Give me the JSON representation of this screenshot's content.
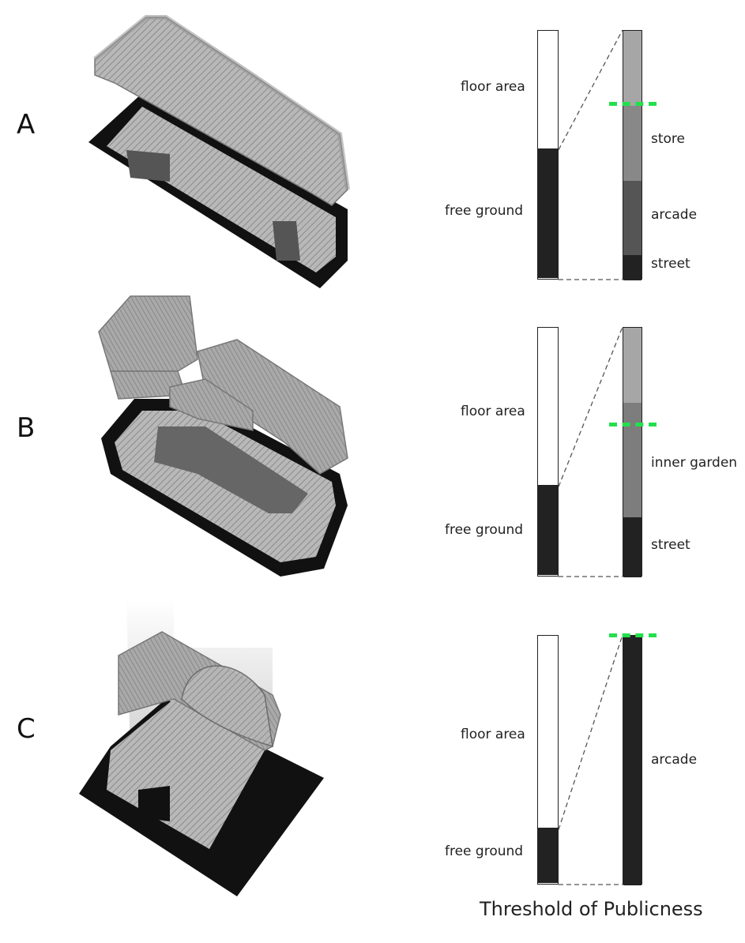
{
  "panels": [
    {
      "letter": "A",
      "left_labels": {
        "upper": "floor area",
        "lower": "free ground"
      },
      "free_ground_fraction": 0.52,
      "right_segments": [
        {
          "label": "",
          "fraction": 0.3,
          "color": "#a6a6a6"
        },
        {
          "label": "store",
          "fraction": 0.3,
          "color": "#888888"
        },
        {
          "label": "arcade",
          "fraction": 0.3,
          "color": "#555555"
        },
        {
          "label": "street",
          "fraction": 0.1,
          "color": "#222222"
        }
      ],
      "threshold_fraction": 0.295
    },
    {
      "letter": "B",
      "left_labels": {
        "upper": "floor area",
        "lower": "free ground"
      },
      "free_ground_fraction": 0.36,
      "right_segments": [
        {
          "label": "",
          "fraction": 0.3,
          "color": "#a6a6a6"
        },
        {
          "label": "inner garden",
          "fraction": 0.46,
          "color": "#7d7d7d"
        },
        {
          "label": "street",
          "fraction": 0.24,
          "color": "#222222"
        }
      ],
      "threshold_fraction": 0.39
    },
    {
      "letter": "C",
      "left_labels": {
        "upper": "floor area",
        "lower": "free ground"
      },
      "free_ground_fraction": 0.22,
      "right_segments": [
        {
          "label": "arcade",
          "fraction": 1.0,
          "color": "#222222"
        }
      ],
      "threshold_fraction": 0.0
    }
  ],
  "footer": "Threshold of Publicness",
  "colors": {
    "threshold": "#22e04c",
    "free_ground": "#222222",
    "floor_area": "#ffffff"
  }
}
